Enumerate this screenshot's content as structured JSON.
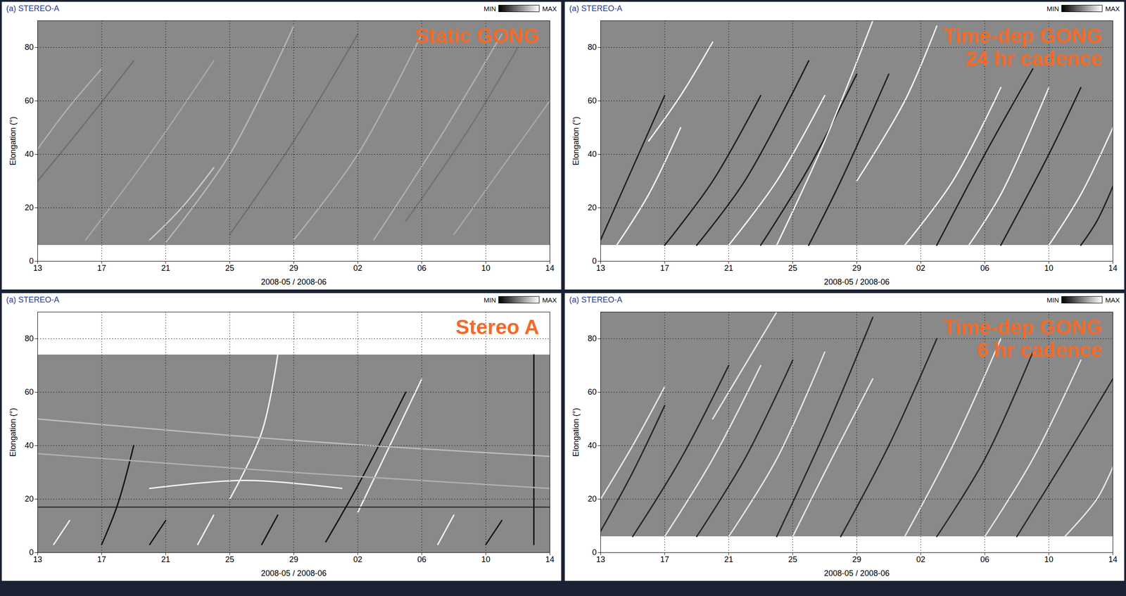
{
  "chart_data": [
    {
      "type": "line",
      "title": "(a) STEREO-A",
      "annotation": [
        "Static GONG"
      ],
      "colorbar_labels": [
        "MIN",
        "MAX"
      ],
      "x_label": "2008-05 / 2008-06",
      "y_label": "Elongation (°)",
      "grid": true,
      "xlim": [
        "2008-05-13",
        "2008-06-14"
      ],
      "xticks": [
        {
          "value": "2008-05-13",
          "label": "13"
        },
        {
          "value": "2008-05-17",
          "label": "17"
        },
        {
          "value": "2008-05-21",
          "label": "21"
        },
        {
          "value": "2008-05-25",
          "label": "25"
        },
        {
          "value": "2008-05-29",
          "label": "29"
        },
        {
          "value": "2008-06-02",
          "label": "02"
        },
        {
          "value": "2008-06-06",
          "label": "06"
        },
        {
          "value": "2008-06-10",
          "label": "10"
        },
        {
          "value": "2008-06-14",
          "label": "14"
        }
      ],
      "ylim": [
        0,
        90
      ],
      "yticks": [
        0,
        20,
        40,
        60,
        80
      ],
      "coverage": [
        6,
        90
      ],
      "tracks": [
        {
          "x": [
            "2008-05-21",
            "2008-05-25",
            "2008-05-29"
          ],
          "values": [
            7,
            40,
            88
          ],
          "color": "#b8b8b8"
        },
        {
          "x": [
            "2008-05-13",
            "2008-05-15",
            "2008-05-17"
          ],
          "values": [
            42,
            58,
            72
          ],
          "color": "#b0b0b0"
        },
        {
          "x": [
            "2008-05-13",
            "2008-05-16",
            "2008-05-19"
          ],
          "values": [
            30,
            52,
            75
          ],
          "color": "#6e6e6e"
        },
        {
          "x": [
            "2008-05-20",
            "2008-05-22",
            "2008-05-24"
          ],
          "values": [
            8,
            20,
            35
          ],
          "color": "#c8c8c8"
        },
        {
          "x": [
            "2008-05-29",
            "2008-06-02",
            "2008-06-06"
          ],
          "values": [
            8,
            40,
            85
          ],
          "color": "#b0b0b0"
        },
        {
          "x": [
            "2008-05-16",
            "2008-05-20",
            "2008-05-24"
          ],
          "values": [
            8,
            40,
            75
          ],
          "color": "#a8a8a8"
        },
        {
          "x": [
            "2008-05-25",
            "2008-05-29",
            "2008-06-02"
          ],
          "values": [
            10,
            45,
            85
          ],
          "color": "#6e6e6e"
        },
        {
          "x": [
            "2008-06-03",
            "2008-06-07",
            "2008-06-11"
          ],
          "values": [
            8,
            45,
            85
          ],
          "color": "#b0b0b0"
        },
        {
          "x": [
            "2008-06-08",
            "2008-06-11",
            "2008-06-14"
          ],
          "values": [
            10,
            35,
            60
          ],
          "color": "#a8a8a8"
        },
        {
          "x": [
            "2008-06-05",
            "2008-06-09",
            "2008-06-12"
          ],
          "values": [
            15,
            50,
            80
          ],
          "color": "#727272"
        }
      ]
    },
    {
      "type": "line",
      "title": "(a) STEREO-A",
      "annotation": [
        "Time-dep GONG",
        "24 hr cadence"
      ],
      "colorbar_labels": [
        "MIN",
        "MAX"
      ],
      "x_label": "2008-05 / 2008-06",
      "y_label": "Elongation (°)",
      "grid": true,
      "xlim": [
        "2008-05-13",
        "2008-06-14"
      ],
      "xticks": [
        {
          "value": "2008-05-13",
          "label": "13"
        },
        {
          "value": "2008-05-17",
          "label": "17"
        },
        {
          "value": "2008-05-21",
          "label": "21"
        },
        {
          "value": "2008-05-25",
          "label": "25"
        },
        {
          "value": "2008-05-29",
          "label": "29"
        },
        {
          "value": "2008-06-02",
          "label": "02"
        },
        {
          "value": "2008-06-06",
          "label": "06"
        },
        {
          "value": "2008-06-10",
          "label": "10"
        },
        {
          "value": "2008-06-14",
          "label": "14"
        }
      ],
      "ylim": [
        0,
        90
      ],
      "yticks": [
        0,
        20,
        40,
        60,
        80
      ],
      "coverage": [
        6,
        90
      ],
      "tracks": [
        {
          "x": [
            "2008-05-13",
            "2008-05-15",
            "2008-05-17"
          ],
          "values": [
            8,
            35,
            62
          ],
          "color": "#1e1e1e"
        },
        {
          "x": [
            "2008-05-14",
            "2008-05-16",
            "2008-05-18"
          ],
          "values": [
            6,
            25,
            50
          ],
          "color": "#f4f4f4"
        },
        {
          "x": [
            "2008-05-16",
            "2008-05-18",
            "2008-05-20"
          ],
          "values": [
            45,
            62,
            82
          ],
          "color": "#f4f4f4"
        },
        {
          "x": [
            "2008-05-17",
            "2008-05-20",
            "2008-05-23"
          ],
          "values": [
            6,
            30,
            62
          ],
          "color": "#1e1e1e"
        },
        {
          "x": [
            "2008-05-19",
            "2008-05-22",
            "2008-05-26"
          ],
          "values": [
            6,
            30,
            75
          ],
          "color": "#1e1e1e"
        },
        {
          "x": [
            "2008-05-21",
            "2008-05-24",
            "2008-05-27"
          ],
          "values": [
            6,
            30,
            62
          ],
          "color": "#f4f4f4"
        },
        {
          "x": [
            "2008-05-23",
            "2008-05-26",
            "2008-05-29"
          ],
          "values": [
            6,
            35,
            70
          ],
          "color": "#1e1e1e"
        },
        {
          "x": [
            "2008-05-24",
            "2008-05-27",
            "2008-05-30"
          ],
          "values": [
            6,
            45,
            90
          ],
          "color": "#f4f4f4"
        },
        {
          "x": [
            "2008-05-26",
            "2008-05-28",
            "2008-05-31"
          ],
          "values": [
            6,
            30,
            70
          ],
          "color": "#1e1e1e"
        },
        {
          "x": [
            "2008-06-01",
            "2008-06-04",
            "2008-06-07"
          ],
          "values": [
            6,
            30,
            65
          ],
          "color": "#f4f4f4"
        },
        {
          "x": [
            "2008-06-03",
            "2008-06-06",
            "2008-06-09"
          ],
          "values": [
            6,
            40,
            72
          ],
          "color": "#1e1e1e"
        },
        {
          "x": [
            "2008-06-05",
            "2008-06-07",
            "2008-06-10"
          ],
          "values": [
            6,
            25,
            65
          ],
          "color": "#f4f4f4"
        },
        {
          "x": [
            "2008-06-07",
            "2008-06-10",
            "2008-06-12"
          ],
          "values": [
            6,
            40,
            65
          ],
          "color": "#1e1e1e"
        },
        {
          "x": [
            "2008-06-10",
            "2008-06-12",
            "2008-06-14"
          ],
          "values": [
            6,
            25,
            50
          ],
          "color": "#f4f4f4"
        },
        {
          "x": [
            "2008-06-12",
            "2008-06-13",
            "2008-06-14"
          ],
          "values": [
            6,
            15,
            28
          ],
          "color": "#1e1e1e"
        },
        {
          "x": [
            "2008-05-29",
            "2008-06-01",
            "2008-06-03"
          ],
          "values": [
            30,
            60,
            88
          ],
          "color": "#f4f4f4"
        }
      ]
    },
    {
      "type": "line",
      "title": "(a) STEREO-A",
      "annotation": [
        "Stereo A"
      ],
      "colorbar_labels": [
        "MIN",
        "MAX"
      ],
      "x_label": "2008-05 / 2008-06",
      "y_label": "Elongation (°)",
      "grid": true,
      "xlim": [
        "2008-05-13",
        "2008-06-14"
      ],
      "xticks": [
        {
          "value": "2008-05-13",
          "label": "13"
        },
        {
          "value": "2008-05-17",
          "label": "17"
        },
        {
          "value": "2008-05-21",
          "label": "21"
        },
        {
          "value": "2008-05-25",
          "label": "25"
        },
        {
          "value": "2008-05-29",
          "label": "29"
        },
        {
          "value": "2008-06-02",
          "label": "02"
        },
        {
          "value": "2008-06-06",
          "label": "06"
        },
        {
          "value": "2008-06-10",
          "label": "10"
        },
        {
          "value": "2008-06-14",
          "label": "14"
        }
      ],
      "ylim": [
        0,
        90
      ],
      "yticks": [
        0,
        20,
        40,
        60,
        80
      ],
      "coverage": [
        0,
        74
      ],
      "hi1_hi2_boundary": 17,
      "tracks": [
        {
          "x": [
            "2008-05-17",
            "2008-05-18",
            "2008-05-19"
          ],
          "values": [
            3,
            18,
            40
          ],
          "color": "#141414"
        },
        {
          "x": [
            "2008-05-25",
            "2008-05-27",
            "2008-05-28"
          ],
          "values": [
            20,
            45,
            74
          ],
          "color": "#f4f4f4"
        },
        {
          "x": [
            "2008-05-31",
            "2008-06-02",
            "2008-06-05"
          ],
          "values": [
            4,
            25,
            60
          ],
          "color": "#141414"
        },
        {
          "x": [
            "2008-06-02",
            "2008-06-04",
            "2008-06-06"
          ],
          "values": [
            15,
            40,
            65
          ],
          "color": "#f4f4f4"
        },
        {
          "x": [
            "2008-06-13",
            "2008-06-13",
            "2008-06-13"
          ],
          "values": [
            3,
            40,
            74
          ],
          "color": "#141414"
        },
        {
          "x": [
            "2008-05-20",
            "2008-05-26",
            "2008-06-01"
          ],
          "values": [
            24,
            27,
            24
          ],
          "color": "#f4f4f4"
        },
        {
          "x": [
            "2008-05-13",
            "2008-05-29",
            "2008-06-14"
          ],
          "values": [
            50,
            42,
            36
          ],
          "color": "#bcbcbc"
        },
        {
          "x": [
            "2008-05-13",
            "2008-05-29",
            "2008-06-14"
          ],
          "values": [
            37,
            30,
            24
          ],
          "color": "#b0b0b0"
        },
        {
          "x": [
            "2008-05-14",
            "2008-05-15"
          ],
          "values": [
            3,
            12
          ],
          "color": "#f4f4f4"
        },
        {
          "x": [
            "2008-05-20",
            "2008-05-21"
          ],
          "values": [
            3,
            12
          ],
          "color": "#141414"
        },
        {
          "x": [
            "2008-05-23",
            "2008-05-24"
          ],
          "values": [
            3,
            14
          ],
          "color": "#f4f4f4"
        },
        {
          "x": [
            "2008-05-27",
            "2008-05-28"
          ],
          "values": [
            3,
            14
          ],
          "color": "#141414"
        },
        {
          "x": [
            "2008-06-07",
            "2008-06-08"
          ],
          "values": [
            3,
            14
          ],
          "color": "#f4f4f4"
        },
        {
          "x": [
            "2008-06-10",
            "2008-06-11"
          ],
          "values": [
            3,
            12
          ],
          "color": "#141414"
        }
      ]
    },
    {
      "type": "line",
      "title": "(a) STEREO-A",
      "annotation": [
        "Time-dep GONG",
        "6 hr cadence"
      ],
      "colorbar_labels": [
        "MIN",
        "MAX"
      ],
      "x_label": "2008-05 / 2008-06",
      "y_label": "Elongation (°)",
      "grid": true,
      "xlim": [
        "2008-05-13",
        "2008-06-14"
      ],
      "xticks": [
        {
          "value": "2008-05-13",
          "label": "13"
        },
        {
          "value": "2008-05-17",
          "label": "17"
        },
        {
          "value": "2008-05-21",
          "label": "21"
        },
        {
          "value": "2008-05-25",
          "label": "25"
        },
        {
          "value": "2008-05-29",
          "label": "29"
        },
        {
          "value": "2008-06-02",
          "label": "02"
        },
        {
          "value": "2008-06-06",
          "label": "06"
        },
        {
          "value": "2008-06-10",
          "label": "10"
        },
        {
          "value": "2008-06-14",
          "label": "14"
        }
      ],
      "ylim": [
        0,
        90
      ],
      "yticks": [
        0,
        20,
        40,
        60,
        80
      ],
      "coverage": [
        6,
        90
      ],
      "tracks": [
        {
          "x": [
            "2008-05-13",
            "2008-05-15",
            "2008-05-17"
          ],
          "values": [
            8,
            30,
            55
          ],
          "color": "#262626"
        },
        {
          "x": [
            "2008-05-13",
            "2008-05-15",
            "2008-05-17"
          ],
          "values": [
            20,
            40,
            62
          ],
          "color": "#e8e8e8"
        },
        {
          "x": [
            "2008-05-15",
            "2008-05-18",
            "2008-05-21"
          ],
          "values": [
            6,
            35,
            70
          ],
          "color": "#262626"
        },
        {
          "x": [
            "2008-05-17",
            "2008-05-20",
            "2008-05-23"
          ],
          "values": [
            6,
            35,
            70
          ],
          "color": "#e8e8e8"
        },
        {
          "x": [
            "2008-05-19",
            "2008-05-22",
            "2008-05-25"
          ],
          "values": [
            6,
            35,
            72
          ],
          "color": "#262626"
        },
        {
          "x": [
            "2008-05-21",
            "2008-05-24",
            "2008-05-27"
          ],
          "values": [
            6,
            35,
            75
          ],
          "color": "#e8e8e8"
        },
        {
          "x": [
            "2008-05-24",
            "2008-05-27",
            "2008-05-30"
          ],
          "values": [
            6,
            45,
            88
          ],
          "color": "#262626"
        },
        {
          "x": [
            "2008-05-25",
            "2008-05-27",
            "2008-05-30"
          ],
          "values": [
            6,
            30,
            65
          ],
          "color": "#e8e8e8"
        },
        {
          "x": [
            "2008-05-28",
            "2008-05-31",
            "2008-06-03"
          ],
          "values": [
            6,
            40,
            80
          ],
          "color": "#262626"
        },
        {
          "x": [
            "2008-06-01",
            "2008-06-04",
            "2008-06-07"
          ],
          "values": [
            6,
            40,
            80
          ],
          "color": "#e8e8e8"
        },
        {
          "x": [
            "2008-06-03",
            "2008-06-06",
            "2008-06-09"
          ],
          "values": [
            6,
            35,
            75
          ],
          "color": "#262626"
        },
        {
          "x": [
            "2008-06-06",
            "2008-06-09",
            "2008-06-12"
          ],
          "values": [
            6,
            35,
            72
          ],
          "color": "#e8e8e8"
        },
        {
          "x": [
            "2008-06-08",
            "2008-06-11",
            "2008-06-14"
          ],
          "values": [
            6,
            35,
            65
          ],
          "color": "#262626"
        },
        {
          "x": [
            "2008-06-11",
            "2008-06-13",
            "2008-06-14"
          ],
          "values": [
            6,
            20,
            32
          ],
          "color": "#e8e8e8"
        },
        {
          "x": [
            "2008-05-20",
            "2008-05-22",
            "2008-05-24"
          ],
          "values": [
            50,
            70,
            90
          ],
          "color": "#e8e8e8"
        }
      ]
    }
  ]
}
